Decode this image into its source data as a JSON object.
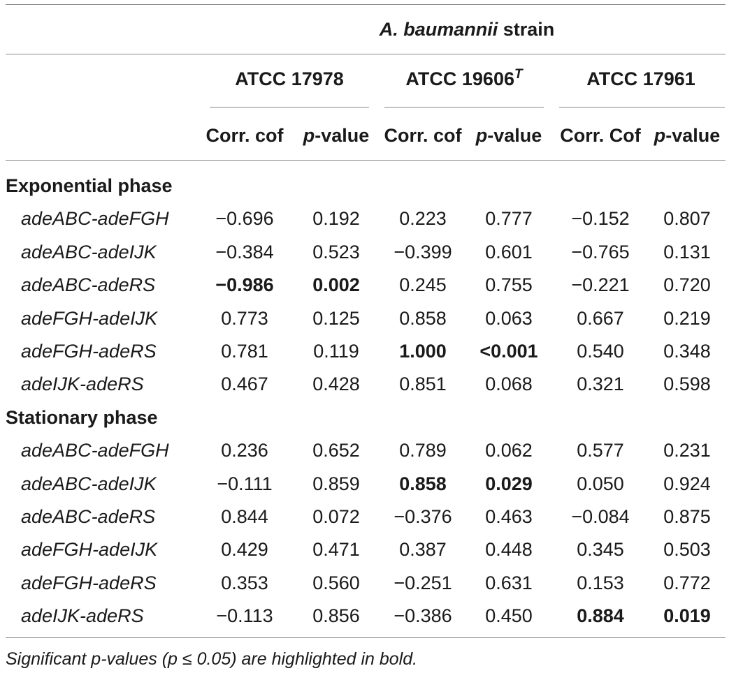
{
  "header": {
    "group_title_italic": "A. baumannii",
    "group_title_rest": " strain",
    "strains": [
      {
        "name": "ATCC 17978",
        "sup": ""
      },
      {
        "name": "ATCC 19606",
        "sup": "T"
      },
      {
        "name": "ATCC 17961",
        "sup": ""
      }
    ],
    "subheads": [
      {
        "corr": "Corr. cof",
        "p_italic": "p",
        "p_rest": "-value"
      },
      {
        "corr": "Corr. cof",
        "p_italic": "p",
        "p_rest": "-value"
      },
      {
        "corr": "Corr. Cof",
        "p_italic": "p",
        "p_rest": "-value"
      }
    ]
  },
  "sections": [
    {
      "title": "Exponential phase",
      "rows": [
        {
          "gene": "adeABC-adeFGH",
          "cells": [
            {
              "v": "−0.696",
              "b": false
            },
            {
              "v": "0.192",
              "b": false
            },
            {
              "v": "0.223",
              "b": false
            },
            {
              "v": "0.777",
              "b": false
            },
            {
              "v": "−0.152",
              "b": false
            },
            {
              "v": "0.807",
              "b": false
            }
          ]
        },
        {
          "gene": "adeABC-adeIJK",
          "cells": [
            {
              "v": "−0.384",
              "b": false
            },
            {
              "v": "0.523",
              "b": false
            },
            {
              "v": "−0.399",
              "b": false
            },
            {
              "v": "0.601",
              "b": false
            },
            {
              "v": "−0.765",
              "b": false
            },
            {
              "v": "0.131",
              "b": false
            }
          ]
        },
        {
          "gene": "adeABC-adeRS",
          "cells": [
            {
              "v": "−0.986",
              "b": true
            },
            {
              "v": "0.002",
              "b": true
            },
            {
              "v": "0.245",
              "b": false
            },
            {
              "v": "0.755",
              "b": false
            },
            {
              "v": "−0.221",
              "b": false
            },
            {
              "v": "0.720",
              "b": false
            }
          ]
        },
        {
          "gene": "adeFGH-adeIJK",
          "cells": [
            {
              "v": "0.773",
              "b": false
            },
            {
              "v": "0.125",
              "b": false
            },
            {
              "v": "0.858",
              "b": false
            },
            {
              "v": "0.063",
              "b": false
            },
            {
              "v": "0.667",
              "b": false
            },
            {
              "v": "0.219",
              "b": false
            }
          ]
        },
        {
          "gene": "adeFGH-adeRS",
          "cells": [
            {
              "v": "0.781",
              "b": false
            },
            {
              "v": "0.119",
              "b": false
            },
            {
              "v": "1.000",
              "b": true
            },
            {
              "v": "<0.001",
              "b": true
            },
            {
              "v": "0.540",
              "b": false
            },
            {
              "v": "0.348",
              "b": false
            }
          ]
        },
        {
          "gene": "adeIJK-adeRS",
          "cells": [
            {
              "v": "0.467",
              "b": false
            },
            {
              "v": "0.428",
              "b": false
            },
            {
              "v": "0.851",
              "b": false
            },
            {
              "v": "0.068",
              "b": false
            },
            {
              "v": "0.321",
              "b": false
            },
            {
              "v": "0.598",
              "b": false
            }
          ]
        }
      ]
    },
    {
      "title": "Stationary phase",
      "rows": [
        {
          "gene": "adeABC-adeFGH",
          "cells": [
            {
              "v": "0.236",
              "b": false
            },
            {
              "v": "0.652",
              "b": false
            },
            {
              "v": "0.789",
              "b": false
            },
            {
              "v": "0.062",
              "b": false
            },
            {
              "v": "0.577",
              "b": false
            },
            {
              "v": "0.231",
              "b": false
            }
          ]
        },
        {
          "gene": "adeABC-adeIJK",
          "cells": [
            {
              "v": "−0.111",
              "b": false
            },
            {
              "v": "0.859",
              "b": false
            },
            {
              "v": "0.858",
              "b": true
            },
            {
              "v": "0.029",
              "b": true
            },
            {
              "v": "0.050",
              "b": false
            },
            {
              "v": "0.924",
              "b": false
            }
          ]
        },
        {
          "gene": "adeABC-adeRS",
          "cells": [
            {
              "v": "0.844",
              "b": false
            },
            {
              "v": "0.072",
              "b": false
            },
            {
              "v": "−0.376",
              "b": false
            },
            {
              "v": "0.463",
              "b": false
            },
            {
              "v": "−0.084",
              "b": false
            },
            {
              "v": "0.875",
              "b": false
            }
          ]
        },
        {
          "gene": "adeFGH-adeIJK",
          "cells": [
            {
              "v": "0.429",
              "b": false
            },
            {
              "v": "0.471",
              "b": false
            },
            {
              "v": "0.387",
              "b": false
            },
            {
              "v": "0.448",
              "b": false
            },
            {
              "v": "0.345",
              "b": false
            },
            {
              "v": "0.503",
              "b": false
            }
          ]
        },
        {
          "gene": "adeFGH-adeRS",
          "cells": [
            {
              "v": "0.353",
              "b": false
            },
            {
              "v": "0.560",
              "b": false
            },
            {
              "v": "−0.251",
              "b": false
            },
            {
              "v": "0.631",
              "b": false
            },
            {
              "v": "0.153",
              "b": false
            },
            {
              "v": "0.772",
              "b": false
            }
          ]
        },
        {
          "gene": "adeIJK-adeRS",
          "cells": [
            {
              "v": "−0.113",
              "b": false
            },
            {
              "v": "0.856",
              "b": false
            },
            {
              "v": "−0.386",
              "b": false
            },
            {
              "v": "0.450",
              "b": false
            },
            {
              "v": "0.884",
              "b": true
            },
            {
              "v": "0.019",
              "b": true
            }
          ]
        }
      ]
    }
  ],
  "footnote": "Significant p-values (p ≤ 0.05) are highlighted in bold."
}
